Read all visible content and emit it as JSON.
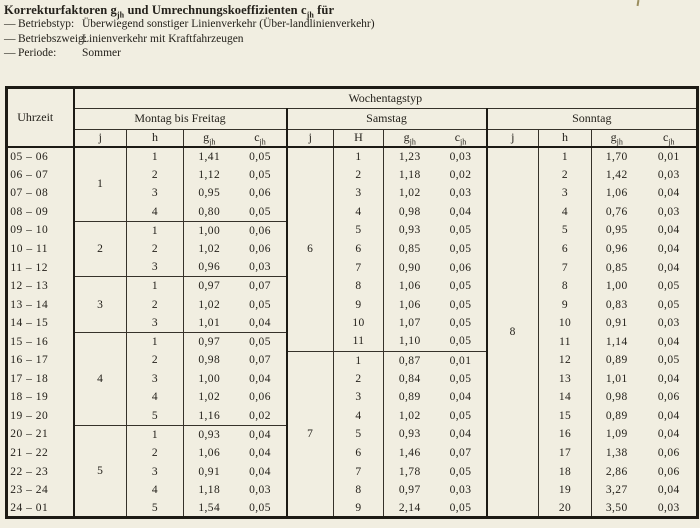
{
  "colors": {
    "paper": "#f1eee1",
    "ink": "#24211b",
    "line": "#1d1b15"
  },
  "header": {
    "title": {
      "t1": "Korrekturfaktoren g",
      "s1": "jh",
      "t2": " und Umrechnungskoeffizienten c",
      "s2": "jh",
      "t3": " für"
    },
    "meta": [
      {
        "dash": "—",
        "label": "Betriebstyp:",
        "value": "Überwiegend sonstiger Linienverkehr (Über-landlinienverkehr)"
      },
      {
        "dash": "—",
        "label": "Betriebszweig:",
        "value": "Linienverkehr mit Kraftfahrzeugen"
      },
      {
        "dash": "—",
        "label": "Periode:",
        "value": "Sommer"
      }
    ]
  },
  "table": {
    "corner_header": "Uhrzeit",
    "group_header": "Wochentagstyp",
    "sections": [
      {
        "name": "Montag bis Freitag",
        "h_label": "h"
      },
      {
        "name": "Samstag",
        "h_label": "H"
      },
      {
        "name": "Sonntag",
        "h_label": "h"
      }
    ],
    "sym": {
      "j": "j",
      "g": "g",
      "c": "c",
      "sub": "jh"
    },
    "blocks": {
      "mf": [
        {
          "j": "1",
          "start": 0,
          "len": 4
        },
        {
          "j": "2",
          "start": 4,
          "len": 3
        },
        {
          "j": "3",
          "start": 7,
          "len": 3
        },
        {
          "j": "4",
          "start": 10,
          "len": 5
        },
        {
          "j": "5",
          "start": 15,
          "len": 5
        }
      ],
      "sa": [
        {
          "j": "6",
          "start": 0,
          "len": 11
        },
        {
          "j": "7",
          "start": 11,
          "len": 9
        }
      ],
      "so": [
        {
          "j": "8",
          "start": 0,
          "len": 20
        }
      ]
    },
    "rows": [
      {
        "time": "05 – 06",
        "mf": [
          "1",
          "1,41",
          "0,05"
        ],
        "sa": [
          "1",
          "1,23",
          "0,03"
        ],
        "so": [
          "1",
          "1,70",
          "0,01"
        ]
      },
      {
        "time": "06 – 07",
        "mf": [
          "2",
          "1,12",
          "0,05"
        ],
        "sa": [
          "2",
          "1,18",
          "0,02"
        ],
        "so": [
          "2",
          "1,42",
          "0,03"
        ]
      },
      {
        "time": "07 – 08",
        "mf": [
          "3",
          "0,95",
          "0,06"
        ],
        "sa": [
          "3",
          "1,02",
          "0,03"
        ],
        "so": [
          "3",
          "1,06",
          "0,04"
        ]
      },
      {
        "time": "08 – 09",
        "mf": [
          "4",
          "0,80",
          "0,05"
        ],
        "sa": [
          "4",
          "0,98",
          "0,04"
        ],
        "so": [
          "4",
          "0,76",
          "0,03"
        ]
      },
      {
        "time": "09 – 10",
        "mf": [
          "1",
          "1,00",
          "0,06"
        ],
        "sa": [
          "5",
          "0,93",
          "0,05"
        ],
        "so": [
          "5",
          "0,95",
          "0,04"
        ]
      },
      {
        "time": "10 – 11",
        "mf": [
          "2",
          "1,02",
          "0,06"
        ],
        "sa": [
          "6",
          "0,85",
          "0,05"
        ],
        "so": [
          "6",
          "0,96",
          "0,04"
        ]
      },
      {
        "time": "11 – 12",
        "mf": [
          "3",
          "0,96",
          "0,03"
        ],
        "sa": [
          "7",
          "0,90",
          "0,06"
        ],
        "so": [
          "7",
          "0,85",
          "0,04"
        ]
      },
      {
        "time": "12 – 13",
        "mf": [
          "1",
          "0,97",
          "0,07"
        ],
        "sa": [
          "8",
          "1,06",
          "0,05"
        ],
        "so": [
          "8",
          "1,00",
          "0,05"
        ]
      },
      {
        "time": "13 – 14",
        "mf": [
          "2",
          "1,02",
          "0,05"
        ],
        "sa": [
          "9",
          "1,06",
          "0,05"
        ],
        "so": [
          "9",
          "0,83",
          "0,05"
        ]
      },
      {
        "time": "14 – 15",
        "mf": [
          "3",
          "1,01",
          "0,04"
        ],
        "sa": [
          "10",
          "1,07",
          "0,05"
        ],
        "so": [
          "10",
          "0,91",
          "0,03"
        ]
      },
      {
        "time": "15 – 16",
        "mf": [
          "1",
          "0,97",
          "0,05"
        ],
        "sa": [
          "11",
          "1,10",
          "0,05"
        ],
        "so": [
          "11",
          "1,14",
          "0,04"
        ]
      },
      {
        "time": "16 – 17",
        "mf": [
          "2",
          "0,98",
          "0,07"
        ],
        "sa": [
          "1",
          "0,87",
          "0,01"
        ],
        "so": [
          "12",
          "0,89",
          "0,05"
        ]
      },
      {
        "time": "17 – 18",
        "mf": [
          "3",
          "1,00",
          "0,04"
        ],
        "sa": [
          "2",
          "0,84",
          "0,05"
        ],
        "so": [
          "13",
          "1,01",
          "0,04"
        ]
      },
      {
        "time": "18 – 19",
        "mf": [
          "4",
          "1,02",
          "0,06"
        ],
        "sa": [
          "3",
          "0,89",
          "0,04"
        ],
        "so": [
          "14",
          "0,98",
          "0,06"
        ]
      },
      {
        "time": "19 – 20",
        "mf": [
          "5",
          "1,16",
          "0,02"
        ],
        "sa": [
          "4",
          "1,02",
          "0,05"
        ],
        "so": [
          "15",
          "0,89",
          "0,04"
        ]
      },
      {
        "time": "20 – 21",
        "mf": [
          "1",
          "0,93",
          "0,04"
        ],
        "sa": [
          "5",
          "0,93",
          "0,04"
        ],
        "so": [
          "16",
          "1,09",
          "0,04"
        ]
      },
      {
        "time": "21 – 22",
        "mf": [
          "2",
          "1,06",
          "0,04"
        ],
        "sa": [
          "6",
          "1,46",
          "0,07"
        ],
        "so": [
          "17",
          "1,38",
          "0,06"
        ]
      },
      {
        "time": "22 – 23",
        "mf": [
          "3",
          "0,91",
          "0,04"
        ],
        "sa": [
          "7",
          "1,78",
          "0,05"
        ],
        "so": [
          "18",
          "2,86",
          "0,06"
        ]
      },
      {
        "time": "23 – 24",
        "mf": [
          "4",
          "1,18",
          "0,03"
        ],
        "sa": [
          "8",
          "0,97",
          "0,03"
        ],
        "so": [
          "19",
          "3,27",
          "0,04"
        ]
      },
      {
        "time": "24 – 01",
        "mf": [
          "5",
          "1,54",
          "0,05"
        ],
        "sa": [
          "9",
          "2,14",
          "0,05"
        ],
        "so": [
          "20",
          "3,50",
          "0,03"
        ]
      }
    ]
  }
}
